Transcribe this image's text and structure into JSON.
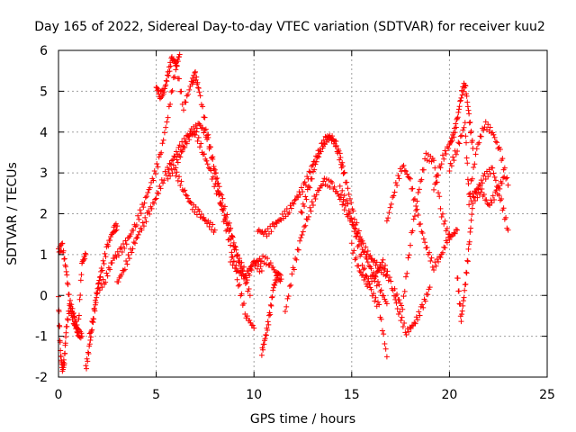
{
  "chart_data": {
    "type": "scatter",
    "title": "Day 165 of 2022, Sidereal Day-to-day VTEC variation (SDTVAR) for receiver kuu2",
    "xlabel": "GPS time / hours",
    "ylabel": "SDTVAR / TECUs",
    "xlim": [
      0,
      25
    ],
    "ylim": [
      -2,
      6
    ],
    "xticks": [
      0,
      5,
      10,
      15,
      20,
      25
    ],
    "yticks": [
      -2,
      -1,
      0,
      1,
      2,
      3,
      4,
      5,
      6
    ],
    "grid": true,
    "marker": "plus",
    "color": "#ff0000",
    "series": [
      {
        "name": "s1",
        "x": [
          0.0,
          0.2,
          0.4,
          0.6,
          0.8,
          1.0,
          1.2
        ],
        "y": [
          1.1,
          1.2,
          0.6,
          -0.3,
          -0.7,
          -0.9,
          -1.0
        ]
      },
      {
        "name": "s2",
        "x": [
          0.0,
          0.1,
          0.2,
          0.3,
          0.4,
          0.6,
          0.8,
          1.0,
          1.2,
          1.4
        ],
        "y": [
          -0.1,
          -1.4,
          -1.8,
          -1.6,
          -0.8,
          -0.2,
          -0.5,
          -0.9,
          0.8,
          1.0
        ]
      },
      {
        "name": "s3",
        "x": [
          1.4,
          1.6,
          1.8,
          2.0,
          2.2,
          2.5,
          2.8,
          3.0
        ],
        "y": [
          -1.8,
          -1.2,
          -0.5,
          0.2,
          0.6,
          1.2,
          1.6,
          1.7
        ]
      },
      {
        "name": "s4",
        "x": [
          1.6,
          2.0,
          2.4,
          2.8,
          3.2,
          3.6,
          4.0,
          4.4,
          4.8,
          5.2,
          5.6,
          6.0,
          6.2
        ],
        "y": [
          -1.0,
          0.1,
          0.4,
          0.9,
          1.1,
          1.4,
          1.8,
          2.3,
          2.8,
          3.4,
          4.4,
          5.6,
          5.9
        ]
      },
      {
        "name": "s5",
        "x": [
          3.0,
          3.4,
          3.8,
          4.2,
          4.6,
          5.0,
          5.4,
          5.8,
          6.2,
          6.6,
          7.0,
          7.4,
          7.8,
          8.2,
          8.6,
          9.0,
          9.4,
          9.8
        ],
        "y": [
          0.3,
          0.7,
          1.2,
          1.6,
          2.0,
          2.4,
          2.9,
          3.3,
          3.6,
          3.9,
          4.0,
          3.5,
          3.0,
          2.4,
          1.8,
          1.2,
          0.6,
          0.0
        ]
      },
      {
        "name": "s6",
        "x": [
          5.0,
          5.2,
          5.4,
          5.6,
          5.8,
          6.0,
          6.4,
          6.8,
          7.0,
          7.2,
          7.6,
          8.0,
          8.4,
          8.8,
          9.2,
          9.6,
          10.0
        ],
        "y": [
          5.1,
          4.9,
          5.0,
          5.4,
          5.8,
          5.7,
          4.6,
          5.2,
          5.4,
          5.0,
          4.0,
          3.0,
          2.0,
          1.2,
          0.3,
          -0.5,
          -0.8
        ]
      },
      {
        "name": "s7",
        "x": [
          5.6,
          6.0,
          6.4,
          6.8,
          7.2,
          7.6,
          8.0,
          8.4,
          8.8,
          9.2,
          9.6,
          10.0,
          10.4
        ],
        "y": [
          2.9,
          3.2,
          3.6,
          4.0,
          4.2,
          3.9,
          3.1,
          2.3,
          1.6,
          0.9,
          0.5,
          0.8,
          0.6
        ]
      },
      {
        "name": "s8",
        "x": [
          6.0,
          6.4,
          6.8,
          7.2,
          7.6,
          8.0
        ],
        "y": [
          3.0,
          2.6,
          2.2,
          2.0,
          1.8,
          1.6
        ]
      },
      {
        "name": "s9",
        "x": [
          8.8,
          9.2,
          9.6,
          10.0,
          10.4,
          10.8,
          11.2,
          11.4
        ],
        "y": [
          0.9,
          0.6,
          0.4,
          0.8,
          0.9,
          0.8,
          0.5,
          0.4
        ]
      },
      {
        "name": "s10",
        "x": [
          10.4,
          10.6,
          10.8,
          11.0,
          11.2
        ],
        "y": [
          -1.4,
          -1.0,
          -0.5,
          0.2,
          0.5
        ]
      },
      {
        "name": "s11",
        "x": [
          10.2,
          10.6,
          11.0,
          11.4,
          11.8,
          12.2,
          12.6,
          13.0,
          13.4,
          13.8,
          14.2,
          14.6
        ],
        "y": [
          1.6,
          1.5,
          1.7,
          1.9,
          2.1,
          2.4,
          2.7,
          3.2,
          3.6,
          3.9,
          3.7,
          3.0
        ]
      },
      {
        "name": "s12",
        "x": [
          11.6,
          12.0,
          12.4,
          12.8,
          13.2,
          13.6,
          14.0,
          14.4,
          14.8,
          15.2,
          15.6,
          16.0,
          16.4,
          16.8
        ],
        "y": [
          -0.4,
          0.6,
          1.4,
          2.0,
          2.5,
          2.8,
          2.7,
          2.4,
          2.0,
          1.6,
          1.2,
          0.9,
          0.7,
          0.5
        ]
      },
      {
        "name": "s13",
        "x": [
          12.4,
          12.8,
          13.2,
          13.6,
          14.0,
          14.4,
          14.8,
          15.2,
          15.6,
          16.0,
          16.4,
          16.8
        ],
        "y": [
          2.0,
          2.6,
          3.3,
          3.8,
          3.9,
          3.4,
          2.6,
          1.8,
          1.1,
          0.6,
          0.2,
          -0.2
        ]
      },
      {
        "name": "s14",
        "x": [
          14.4,
          14.8,
          15.2,
          15.6,
          16.0,
          16.4,
          16.8
        ],
        "y": [
          2.6,
          2.2,
          1.5,
          0.7,
          0.1,
          -0.3,
          -1.5
        ]
      },
      {
        "name": "s15",
        "x": [
          15.0,
          15.4,
          15.8,
          16.2,
          16.6,
          17.0,
          17.4,
          17.8,
          18.2,
          18.6,
          19.0
        ],
        "y": [
          1.2,
          0.6,
          0.3,
          0.5,
          0.8,
          0.3,
          -0.4,
          -0.9,
          -0.7,
          -0.3,
          0.2
        ]
      },
      {
        "name": "s16",
        "x": [
          17.2,
          17.6,
          18.0,
          18.4,
          18.8,
          19.2,
          19.6,
          20.0,
          20.4
        ],
        "y": [
          0.1,
          -0.3,
          1.3,
          2.5,
          3.4,
          3.3,
          2.0,
          1.4,
          1.6
        ]
      },
      {
        "name": "s17",
        "x": [
          16.8,
          17.2,
          17.6,
          18.0,
          18.4,
          18.8,
          19.2,
          19.6,
          20.0
        ],
        "y": [
          1.8,
          2.6,
          3.2,
          2.8,
          1.9,
          1.2,
          0.7,
          1.0,
          1.5
        ]
      },
      {
        "name": "s18",
        "x": [
          19.2,
          19.6,
          20.0,
          20.2,
          20.4,
          20.6,
          20.8,
          21.0,
          21.2
        ],
        "y": [
          2.6,
          3.3,
          3.7,
          3.9,
          4.3,
          4.9,
          5.2,
          4.4,
          3.6
        ]
      },
      {
        "name": "s19",
        "x": [
          20.0,
          20.4,
          20.8,
          21.0,
          21.4,
          21.8,
          22.2,
          22.6,
          23.0
        ],
        "y": [
          3.1,
          3.6,
          4.2,
          2.4,
          3.6,
          4.2,
          4.0,
          3.5,
          2.7
        ]
      },
      {
        "name": "s20",
        "x": [
          20.4,
          20.6,
          20.8,
          21.0,
          21.2,
          21.6,
          22.0,
          22.4,
          22.8
        ],
        "y": [
          0.5,
          -0.6,
          0.2,
          1.2,
          2.3,
          2.6,
          2.2,
          2.5,
          2.9
        ]
      },
      {
        "name": "s21",
        "x": [
          21.0,
          21.4,
          21.8,
          22.2,
          22.6,
          23.0
        ],
        "y": [
          2.3,
          2.6,
          2.9,
          3.1,
          2.4,
          1.6
        ]
      }
    ]
  }
}
